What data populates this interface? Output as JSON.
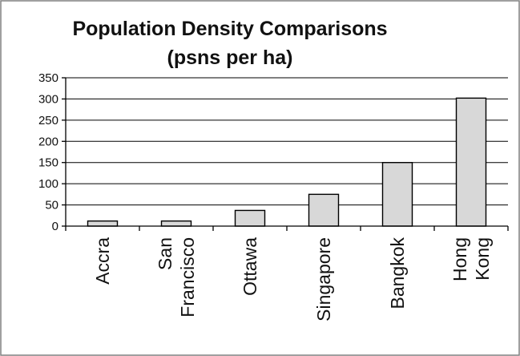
{
  "chart_data": {
    "type": "bar",
    "title_lines": [
      "Population Density Comparisons",
      "(psns per ha)"
    ],
    "categories": [
      [
        "Accra"
      ],
      [
        "San",
        "Francisco"
      ],
      [
        "Ottawa"
      ],
      [
        "Singapore"
      ],
      [
        "Bangkok"
      ],
      [
        "Hong",
        "Kong"
      ]
    ],
    "values": [
      12,
      12,
      37,
      75,
      150,
      302
    ],
    "ylim": [
      0,
      350
    ],
    "yticks": [
      0,
      50,
      100,
      150,
      200,
      250,
      300,
      350
    ],
    "xlabel": "",
    "ylabel": "",
    "grid": true,
    "legend": "none",
    "colors": {
      "bar_fill": "#d8d8d8",
      "bar_stroke": "#000000",
      "frame": "#808080"
    }
  }
}
